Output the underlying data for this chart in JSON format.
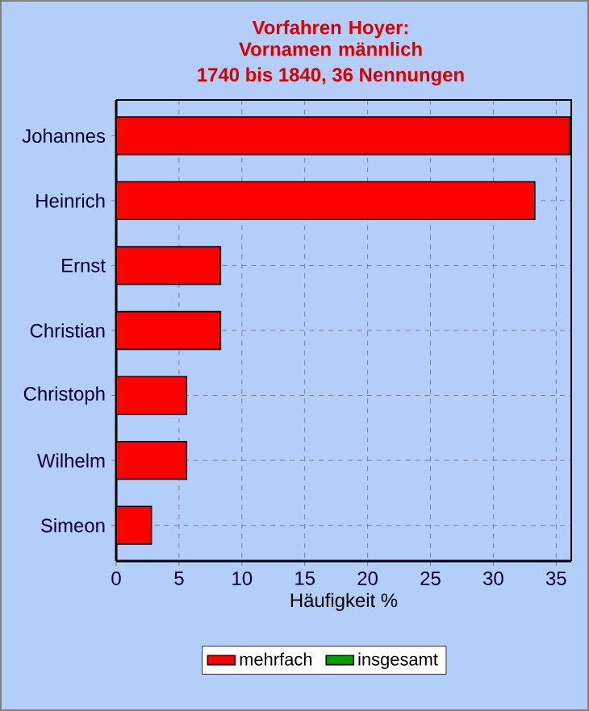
{
  "chart_data": {
    "type": "bar",
    "orientation": "horizontal",
    "title": "Vorfahren Hoyer: Vornamen männlich",
    "subtitle": "1740 bis 1840, 36 Nennungen",
    "xlabel": "Häufigkeit %",
    "categories": [
      "Johannes",
      "Heinrich",
      "Ernst",
      "Christian",
      "Christoph",
      "Wilhelm",
      "Simeon"
    ],
    "series": [
      {
        "name": "mehrfach",
        "color": "#ff0000",
        "values": [
          36.1,
          33.3,
          8.3,
          8.3,
          5.6,
          5.6,
          2.8
        ]
      },
      {
        "name": "insgesamt",
        "color": "#00a000",
        "values": [
          null,
          null,
          null,
          null,
          null,
          null,
          null
        ]
      }
    ],
    "xlim": [
      0,
      36.2
    ],
    "xticks": [
      0,
      5,
      10,
      15,
      20,
      25,
      30,
      35
    ],
    "grid": true,
    "line_style": "dashed",
    "legend": "bottom"
  }
}
